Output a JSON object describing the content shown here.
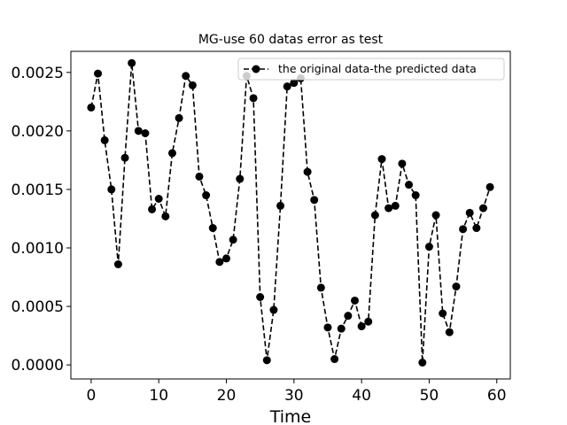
{
  "chart_data": {
    "type": "line",
    "title": "MG-use 60 datas error as test",
    "xlabel": "Time",
    "ylabel": "",
    "xlim": [
      -3,
      62
    ],
    "ylim": [
      -0.00012,
      0.00268
    ],
    "xticks": [
      0,
      10,
      20,
      30,
      40,
      50,
      60
    ],
    "xtick_labels": [
      "0",
      "10",
      "20",
      "30",
      "40",
      "50",
      "60"
    ],
    "yticks": [
      0.0,
      0.0005,
      0.001,
      0.0015,
      0.002,
      0.0025
    ],
    "ytick_labels": [
      "0.0000",
      "0.0005",
      "0.0010",
      "0.0015",
      "0.0020",
      "0.0025"
    ],
    "grid": false,
    "legend_position": "top-right",
    "series": [
      {
        "name": "the original data-the predicted data",
        "color": "#000000",
        "line_style": "dashed",
        "marker": "circle",
        "x": [
          0,
          1,
          2,
          3,
          4,
          5,
          6,
          7,
          8,
          9,
          10,
          11,
          12,
          13,
          14,
          15,
          16,
          17,
          18,
          19,
          20,
          21,
          22,
          23,
          24,
          25,
          26,
          27,
          28,
          29,
          30,
          31,
          32,
          33,
          34,
          35,
          36,
          37,
          38,
          39,
          40,
          41,
          42,
          43,
          44,
          45,
          46,
          47,
          48,
          49,
          50,
          51,
          52,
          53,
          54,
          55,
          56,
          57,
          58,
          59
        ],
        "values": [
          0.0022,
          0.00249,
          0.00192,
          0.0015,
          0.00086,
          0.00177,
          0.00258,
          0.002,
          0.00198,
          0.00133,
          0.00142,
          0.00127,
          0.00181,
          0.00211,
          0.00247,
          0.00239,
          0.00161,
          0.00145,
          0.00117,
          0.00088,
          0.00091,
          0.00107,
          0.00159,
          0.00247,
          0.00228,
          0.00058,
          4e-05,
          0.00047,
          0.00136,
          0.00238,
          0.00241,
          0.00245,
          0.00165,
          0.00141,
          0.00066,
          0.00032,
          5e-05,
          0.00031,
          0.00042,
          0.00055,
          0.00033,
          0.00037,
          0.00128,
          0.00176,
          0.00134,
          0.00136,
          0.00172,
          0.00154,
          0.00145,
          2e-05,
          0.00101,
          0.00128,
          0.00044,
          0.00028,
          0.00067,
          0.00116,
          0.0013,
          0.00117,
          0.00134,
          0.00152
        ]
      }
    ]
  }
}
